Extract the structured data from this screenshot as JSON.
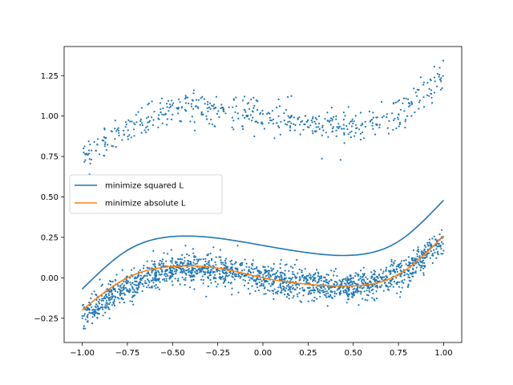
{
  "chart_data": {
    "type": "scatter",
    "title": "",
    "xlabel": "",
    "ylabel": "",
    "xlim": [
      -1.1,
      1.1
    ],
    "ylim": [
      -0.4,
      1.43
    ],
    "x_ticks": [
      -1.0,
      -0.75,
      -0.5,
      -0.25,
      0.0,
      0.25,
      0.5,
      0.75,
      1.0
    ],
    "x_tick_labels": [
      "−1.00",
      "−0.75",
      "−0.50",
      "−0.25",
      "0.00",
      "0.25",
      "0.50",
      "0.75",
      "1.00"
    ],
    "y_ticks": [
      -0.25,
      0.0,
      0.25,
      0.5,
      0.75,
      1.0,
      1.25
    ],
    "y_tick_labels": [
      "−0.25",
      "0.00",
      "0.25",
      "0.50",
      "0.75",
      "1.00",
      "1.25"
    ],
    "grid": false,
    "legend_position": "center-left",
    "scatter": {
      "color": "#1f77b4",
      "clusters": [
        {
          "x_range": [
            -1.0,
            1.0
          ],
          "trend_points": [
            [
              -1.0,
              0.75
            ],
            [
              -0.75,
              0.92
            ],
            [
              -0.5,
              1.05
            ],
            [
              -0.25,
              1.05
            ],
            [
              0.0,
              1.0
            ],
            [
              0.25,
              0.96
            ],
            [
              0.5,
              0.93
            ],
            [
              0.75,
              1.02
            ],
            [
              1.0,
              1.24
            ]
          ],
          "spread": 0.05
        },
        {
          "x_range": [
            -1.0,
            1.0
          ],
          "trend_points": [
            [
              -1.0,
              -0.25
            ],
            [
              -0.75,
              -0.05
            ],
            [
              -0.5,
              0.05
            ],
            [
              -0.25,
              0.05
            ],
            [
              0.0,
              0.0
            ],
            [
              0.25,
              -0.04
            ],
            [
              0.5,
              -0.05
            ],
            [
              0.75,
              0.02
            ],
            [
              1.0,
              0.25
            ]
          ],
          "spread": 0.045
        }
      ]
    },
    "series": [
      {
        "name": "minimize squared L",
        "color": "#1f77b4",
        "x": [
          -1.0,
          -0.75,
          -0.5,
          -0.25,
          0.0,
          0.25,
          0.5,
          0.75,
          1.0
        ],
        "y": [
          -0.07,
          0.17,
          0.255,
          0.245,
          0.2,
          0.155,
          0.14,
          0.225,
          0.48
        ]
      },
      {
        "name": "minimize absolute L",
        "color": "#ff7f0e",
        "x": [
          -1.0,
          -0.75,
          -0.5,
          -0.25,
          0.0,
          0.25,
          0.5,
          0.75,
          1.0
        ],
        "y": [
          -0.2,
          0.0,
          0.07,
          0.06,
          0.0,
          -0.04,
          -0.05,
          0.02,
          0.26
        ]
      }
    ]
  }
}
